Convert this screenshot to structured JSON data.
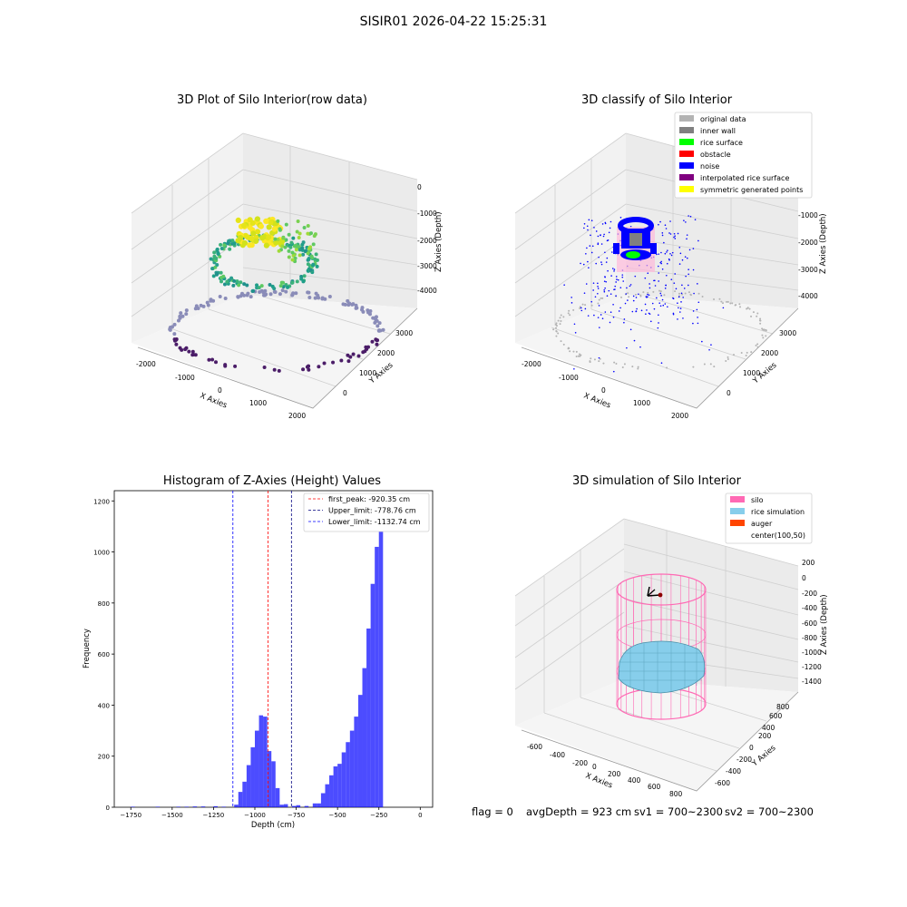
{
  "suptitle": "SISIR01 2026-04-22 15:25:31",
  "panels": {
    "raw": {
      "title": "3D Plot of Silo Interior(row data)",
      "xlabel": "X Axies",
      "ylabel": "Y Axies",
      "zlabel": "Z Axies (Depth)",
      "xticks": [
        "-2000",
        "-1000",
        "0",
        "1000",
        "2000"
      ],
      "yticks": [
        "0",
        "1000",
        "2000",
        "3000"
      ],
      "zticks": [
        "0",
        "-1000",
        "-2000",
        "-3000",
        "-4000"
      ]
    },
    "classify": {
      "title": "3D classify of Silo Interior",
      "xlabel": "X Axies",
      "ylabel": "Y Axies",
      "zlabel": "Z Axies (Depth)",
      "xticks": [
        "-2000",
        "-1000",
        "0",
        "1000",
        "2000"
      ],
      "yticks": [
        "0",
        "1000",
        "2000",
        "3000"
      ],
      "zticks": [
        "-1000",
        "-2000",
        "-3000",
        "-4000"
      ],
      "legend": [
        {
          "label": "original data",
          "color": "#b3b3b3"
        },
        {
          "label": "inner wall",
          "color": "#808080"
        },
        {
          "label": "rice surface",
          "color": "#00ff00"
        },
        {
          "label": "obstacle",
          "color": "#ff0000"
        },
        {
          "label": "noise",
          "color": "#0000ff"
        },
        {
          "label": "interpolated rice surface",
          "color": "#800080"
        },
        {
          "label": "symmetric generated points",
          "color": "#ffff00"
        }
      ]
    },
    "simulation": {
      "title": "3D simulation of Silo Interior",
      "xlabel": "X Axies",
      "ylabel": "Y Axies",
      "zlabel": "Z Axies (Depth)",
      "xticks": [
        "-600",
        "-400",
        "-200",
        "0",
        "200",
        "400",
        "600",
        "800"
      ],
      "yticks": [
        "-600",
        "-400",
        "-200",
        "0",
        "200",
        "400",
        "600",
        "800"
      ],
      "zticks": [
        "200",
        "0",
        "-200",
        "-400",
        "-600",
        "-800",
        "-1000",
        "-1200",
        "-1400"
      ],
      "legend": [
        {
          "label": "silo",
          "color": "#ff69b4"
        },
        {
          "label": "rice simulation",
          "color": "#87ceeb"
        },
        {
          "label": "auger",
          "color": "#ff4500"
        },
        {
          "label": "center(100,50)",
          "color": ""
        }
      ]
    }
  },
  "chart_data": [
    {
      "type": "histogram",
      "title": "Histogram of Z-Axies (Height) Values",
      "xlabel": "Depth (cm)",
      "ylabel": "Frequency",
      "xlim": [
        -1850,
        75
      ],
      "ylim": [
        0,
        1240
      ],
      "xticks": [
        -1750,
        -1500,
        -1250,
        -1000,
        -750,
        -500,
        -250,
        0
      ],
      "yticks": [
        0,
        200,
        400,
        600,
        800,
        1000,
        1200
      ],
      "bar_color": "#0000ff",
      "bin_width": 25,
      "bins": [
        [
          -1750,
          2
        ],
        [
          -1600,
          2
        ],
        [
          -1475,
          2
        ],
        [
          -1425,
          2
        ],
        [
          -1375,
          3
        ],
        [
          -1325,
          3
        ],
        [
          -1250,
          4
        ],
        [
          -1200,
          2
        ],
        [
          -1125,
          10
        ],
        [
          -1100,
          60
        ],
        [
          -1075,
          100
        ],
        [
          -1050,
          165
        ],
        [
          -1025,
          235
        ],
        [
          -1000,
          300
        ],
        [
          -975,
          360
        ],
        [
          -950,
          355
        ],
        [
          -925,
          220
        ],
        [
          -900,
          180
        ],
        [
          -875,
          75
        ],
        [
          -850,
          10
        ],
        [
          -825,
          12
        ],
        [
          -775,
          5
        ],
        [
          -750,
          8
        ],
        [
          -700,
          5
        ],
        [
          -650,
          15
        ],
        [
          -625,
          15
        ],
        [
          -600,
          55
        ],
        [
          -575,
          90
        ],
        [
          -550,
          125
        ],
        [
          -525,
          160
        ],
        [
          -500,
          170
        ],
        [
          -475,
          215
        ],
        [
          -450,
          255
        ],
        [
          -425,
          300
        ],
        [
          -400,
          355
        ],
        [
          -375,
          440
        ],
        [
          -350,
          545
        ],
        [
          -325,
          700
        ],
        [
          -300,
          875
        ],
        [
          -275,
          1020
        ],
        [
          -250,
          1180
        ]
      ],
      "vlines": [
        {
          "label": "first_peak: -920.35 cm",
          "x": -920.35,
          "color": "#ff0000"
        },
        {
          "label": "Upper_limit: -778.76 cm",
          "x": -778.76,
          "color": "#000080"
        },
        {
          "label": "Lower_limit: -1132.74 cm",
          "x": -1132.74,
          "color": "#0000ff"
        }
      ]
    }
  ],
  "status": {
    "flag": "flag = 0",
    "avg": "avgDepth = 923 cm",
    "sv1": "sv1 = 700~2300",
    "sv2": "sv2 = 700~2300"
  }
}
